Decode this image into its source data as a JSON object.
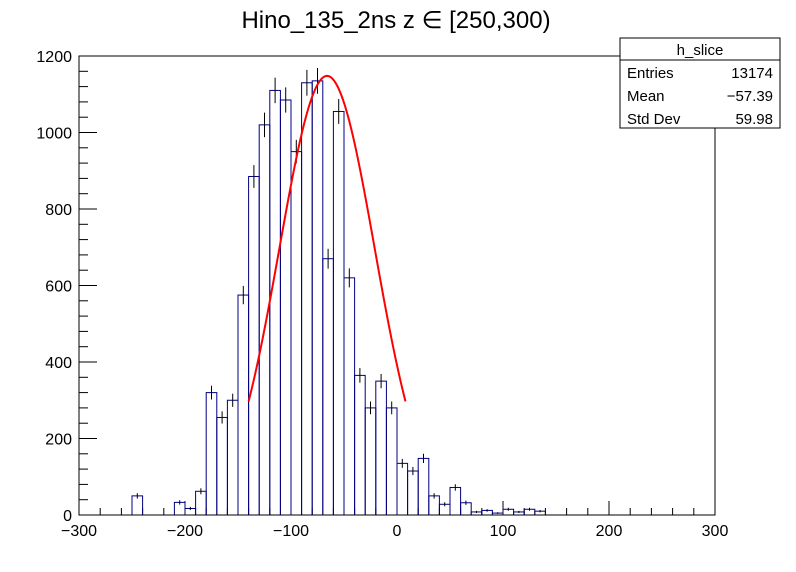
{
  "chart_data": {
    "type": "histogram",
    "title": "Hino_135_2ns z  ∈ [250,300)",
    "xlabel": "",
    "ylabel": "",
    "xlim": [
      -300,
      300
    ],
    "ylim": [
      0,
      1200
    ],
    "x_ticks": [
      -300,
      -200,
      -100,
      0,
      100,
      200,
      300
    ],
    "y_ticks": [
      0,
      200,
      400,
      600,
      800,
      1000,
      1200
    ],
    "bin_width": 10,
    "bins": [
      {
        "x": -250,
        "y": 50
      },
      {
        "x": -210,
        "y": 33
      },
      {
        "x": -200,
        "y": 17
      },
      {
        "x": -190,
        "y": 62
      },
      {
        "x": -180,
        "y": 320
      },
      {
        "x": -170,
        "y": 255
      },
      {
        "x": -160,
        "y": 300
      },
      {
        "x": -150,
        "y": 575
      },
      {
        "x": -140,
        "y": 885
      },
      {
        "x": -130,
        "y": 1020
      },
      {
        "x": -120,
        "y": 1110
      },
      {
        "x": -110,
        "y": 1085
      },
      {
        "x": -100,
        "y": 950
      },
      {
        "x": -90,
        "y": 1130
      },
      {
        "x": -80,
        "y": 1135
      },
      {
        "x": -70,
        "y": 670
      },
      {
        "x": -60,
        "y": 1055
      },
      {
        "x": -50,
        "y": 620
      },
      {
        "x": -40,
        "y": 365
      },
      {
        "x": -30,
        "y": 280
      },
      {
        "x": -20,
        "y": 350
      },
      {
        "x": -10,
        "y": 280
      },
      {
        "x": 0,
        "y": 135
      },
      {
        "x": 10,
        "y": 115
      },
      {
        "x": 20,
        "y": 148
      },
      {
        "x": 30,
        "y": 50
      },
      {
        "x": 40,
        "y": 28
      },
      {
        "x": 50,
        "y": 72
      },
      {
        "x": 60,
        "y": 32
      },
      {
        "x": 70,
        "y": 8
      },
      {
        "x": 80,
        "y": 12
      },
      {
        "x": 90,
        "y": 5
      },
      {
        "x": 100,
        "y": 15
      },
      {
        "x": 110,
        "y": 8
      },
      {
        "x": 120,
        "y": 15
      },
      {
        "x": 130,
        "y": 10
      }
    ],
    "fit": {
      "type": "gaussian",
      "amplitude": 1148,
      "mean": -66,
      "sigma": 45,
      "range": [
        -140,
        8
      ],
      "color": "#ff0000"
    },
    "series_color": "#000080"
  },
  "stats_box": {
    "name": "h_slice",
    "rows": [
      {
        "label": "Entries",
        "value": "13174"
      },
      {
        "label": "Mean",
        "value": "−57.39"
      },
      {
        "label": "Std Dev",
        "value": "59.98"
      }
    ]
  }
}
